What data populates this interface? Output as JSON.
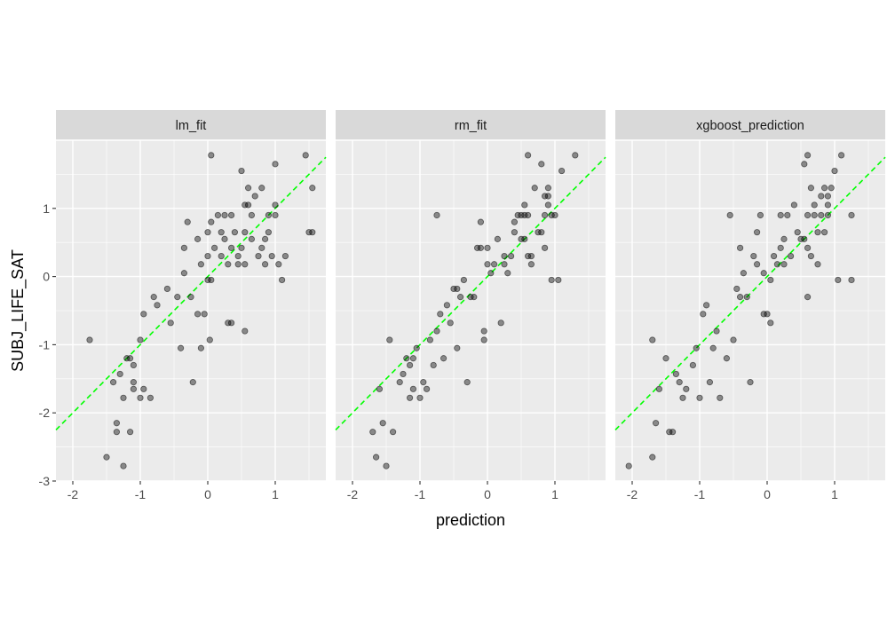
{
  "chart_data": {
    "type": "scatter",
    "facet_variable": "model",
    "xlabel": "prediction",
    "ylabel": "SUBJ_LIFE_SAT",
    "xlim": [
      -2.25,
      1.75
    ],
    "ylim": [
      -3.0,
      2.0
    ],
    "x_ticks": [
      -2,
      -1,
      0,
      1
    ],
    "y_ticks": [
      -3,
      -2,
      -1,
      0,
      1
    ],
    "grid": true,
    "reference_line": {
      "slope": 1,
      "intercept": 0,
      "style": "dashed",
      "color": "#00ff00"
    },
    "point_color": "#000000",
    "point_alpha": 0.45,
    "panels": [
      {
        "name": "lm_fit",
        "points": [
          [
            -1.75,
            -0.93
          ],
          [
            -1.5,
            -2.65
          ],
          [
            -1.4,
            -1.55
          ],
          [
            -1.35,
            -2.15
          ],
          [
            -1.35,
            -2.28
          ],
          [
            -1.3,
            -1.43
          ],
          [
            -1.25,
            -1.78
          ],
          [
            -1.25,
            -2.78
          ],
          [
            -1.2,
            -1.2
          ],
          [
            -1.15,
            -1.2
          ],
          [
            -1.15,
            -2.28
          ],
          [
            -1.1,
            -1.3
          ],
          [
            -1.1,
            -1.55
          ],
          [
            -1.1,
            -1.65
          ],
          [
            -1.0,
            -0.93
          ],
          [
            -1.0,
            -1.78
          ],
          [
            -0.95,
            -1.65
          ],
          [
            -0.95,
            -0.55
          ],
          [
            -0.85,
            -1.78
          ],
          [
            -0.8,
            -0.3
          ],
          [
            -0.75,
            -0.42
          ],
          [
            -0.6,
            -0.18
          ],
          [
            -0.55,
            -0.68
          ],
          [
            -0.45,
            -0.3
          ],
          [
            -0.4,
            -1.05
          ],
          [
            -0.35,
            0.05
          ],
          [
            -0.35,
            0.42
          ],
          [
            -0.3,
            0.8
          ],
          [
            -0.25,
            -0.3
          ],
          [
            -0.22,
            -1.55
          ],
          [
            -0.15,
            -0.55
          ],
          [
            -0.15,
            0.55
          ],
          [
            -0.1,
            0.18
          ],
          [
            -0.1,
            -1.05
          ],
          [
            -0.05,
            -0.55
          ],
          [
            0.0,
            -0.05
          ],
          [
            0.0,
            0.3
          ],
          [
            0.0,
            0.65
          ],
          [
            0.03,
            -0.93
          ],
          [
            0.05,
            0.8
          ],
          [
            0.05,
            -0.05
          ],
          [
            0.05,
            1.78
          ],
          [
            0.1,
            0.42
          ],
          [
            0.15,
            0.9
          ],
          [
            0.2,
            0.65
          ],
          [
            0.2,
            0.3
          ],
          [
            0.25,
            0.9
          ],
          [
            0.25,
            0.55
          ],
          [
            0.3,
            0.18
          ],
          [
            0.3,
            -0.68
          ],
          [
            0.35,
            0.42
          ],
          [
            0.35,
            -0.68
          ],
          [
            0.35,
            0.9
          ],
          [
            0.4,
            0.65
          ],
          [
            0.45,
            0.3
          ],
          [
            0.45,
            0.18
          ],
          [
            0.5,
            1.55
          ],
          [
            0.5,
            0.42
          ],
          [
            0.55,
            1.05
          ],
          [
            0.55,
            0.18
          ],
          [
            0.55,
            0.65
          ],
          [
            0.55,
            -0.8
          ],
          [
            0.6,
            1.3
          ],
          [
            0.6,
            1.05
          ],
          [
            0.65,
            0.55
          ],
          [
            0.65,
            0.9
          ],
          [
            0.7,
            1.18
          ],
          [
            0.75,
            0.3
          ],
          [
            0.8,
            1.3
          ],
          [
            0.8,
            0.42
          ],
          [
            0.85,
            0.55
          ],
          [
            0.85,
            0.18
          ],
          [
            0.9,
            0.9
          ],
          [
            0.9,
            0.65
          ],
          [
            0.95,
            0.3
          ],
          [
            1.0,
            1.65
          ],
          [
            1.0,
            1.05
          ],
          [
            1.0,
            0.9
          ],
          [
            1.05,
            0.18
          ],
          [
            1.1,
            -0.05
          ],
          [
            1.15,
            0.3
          ],
          [
            1.45,
            1.78
          ],
          [
            1.5,
            0.65
          ],
          [
            1.55,
            1.3
          ],
          [
            1.55,
            0.65
          ]
        ]
      },
      {
        "name": "rm_fit",
        "points": [
          [
            -1.7,
            -2.28
          ],
          [
            -1.65,
            -2.65
          ],
          [
            -1.6,
            -1.65
          ],
          [
            -1.55,
            -2.15
          ],
          [
            -1.5,
            -2.78
          ],
          [
            -1.45,
            -0.93
          ],
          [
            -1.4,
            -2.28
          ],
          [
            -1.3,
            -1.55
          ],
          [
            -1.25,
            -1.43
          ],
          [
            -1.2,
            -1.2
          ],
          [
            -1.15,
            -1.3
          ],
          [
            -1.15,
            -1.78
          ],
          [
            -1.1,
            -1.2
          ],
          [
            -1.1,
            -1.65
          ],
          [
            -1.05,
            -1.05
          ],
          [
            -1.0,
            -1.78
          ],
          [
            -0.95,
            -1.55
          ],
          [
            -0.9,
            -1.65
          ],
          [
            -0.85,
            -0.93
          ],
          [
            -0.8,
            -1.3
          ],
          [
            -0.75,
            -0.8
          ],
          [
            -0.75,
            0.9
          ],
          [
            -0.7,
            -0.55
          ],
          [
            -0.65,
            -1.2
          ],
          [
            -0.6,
            -0.42
          ],
          [
            -0.55,
            -0.68
          ],
          [
            -0.5,
            -0.18
          ],
          [
            -0.45,
            -1.05
          ],
          [
            -0.45,
            -0.18
          ],
          [
            -0.4,
            -0.3
          ],
          [
            -0.35,
            -0.05
          ],
          [
            -0.3,
            -1.55
          ],
          [
            -0.25,
            -0.3
          ],
          [
            -0.2,
            -0.3
          ],
          [
            -0.15,
            0.42
          ],
          [
            -0.1,
            0.8
          ],
          [
            -0.1,
            0.42
          ],
          [
            -0.05,
            -0.8
          ],
          [
            -0.05,
            -0.93
          ],
          [
            0.0,
            0.18
          ],
          [
            0.0,
            0.42
          ],
          [
            0.05,
            0.05
          ],
          [
            0.1,
            0.18
          ],
          [
            0.15,
            0.55
          ],
          [
            0.2,
            -0.68
          ],
          [
            0.25,
            0.3
          ],
          [
            0.25,
            0.18
          ],
          [
            0.3,
            0.05
          ],
          [
            0.35,
            0.3
          ],
          [
            0.4,
            0.8
          ],
          [
            0.4,
            0.65
          ],
          [
            0.45,
            0.9
          ],
          [
            0.5,
            0.55
          ],
          [
            0.5,
            0.9
          ],
          [
            0.55,
            0.9
          ],
          [
            0.55,
            0.55
          ],
          [
            0.55,
            1.05
          ],
          [
            0.6,
            1.78
          ],
          [
            0.6,
            0.9
          ],
          [
            0.6,
            0.3
          ],
          [
            0.65,
            0.18
          ],
          [
            0.65,
            0.3
          ],
          [
            0.7,
            1.3
          ],
          [
            0.75,
            0.65
          ],
          [
            0.8,
            0.65
          ],
          [
            0.8,
            1.65
          ],
          [
            0.85,
            1.18
          ],
          [
            0.85,
            0.9
          ],
          [
            0.85,
            0.42
          ],
          [
            0.9,
            1.3
          ],
          [
            0.9,
            1.18
          ],
          [
            0.9,
            1.05
          ],
          [
            0.95,
            0.9
          ],
          [
            0.95,
            -0.05
          ],
          [
            1.0,
            0.9
          ],
          [
            1.05,
            -0.05
          ],
          [
            1.1,
            1.55
          ],
          [
            1.3,
            1.78
          ]
        ]
      },
      {
        "name": "xgboost_prediction",
        "points": [
          [
            -2.05,
            -2.78
          ],
          [
            -1.7,
            -2.65
          ],
          [
            -1.7,
            -0.93
          ],
          [
            -1.65,
            -2.15
          ],
          [
            -1.6,
            -1.65
          ],
          [
            -1.5,
            -1.2
          ],
          [
            -1.45,
            -2.28
          ],
          [
            -1.4,
            -2.28
          ],
          [
            -1.35,
            -1.43
          ],
          [
            -1.3,
            -1.55
          ],
          [
            -1.25,
            -1.78
          ],
          [
            -1.2,
            -1.65
          ],
          [
            -1.1,
            -1.3
          ],
          [
            -1.05,
            -1.05
          ],
          [
            -1.0,
            -1.78
          ],
          [
            -0.95,
            -0.55
          ],
          [
            -0.9,
            -0.42
          ],
          [
            -0.85,
            -1.55
          ],
          [
            -0.8,
            -1.05
          ],
          [
            -0.75,
            -0.8
          ],
          [
            -0.7,
            -1.78
          ],
          [
            -0.6,
            -1.2
          ],
          [
            -0.55,
            0.9
          ],
          [
            -0.5,
            -0.93
          ],
          [
            -0.45,
            -0.18
          ],
          [
            -0.4,
            -0.3
          ],
          [
            -0.4,
            0.42
          ],
          [
            -0.35,
            0.05
          ],
          [
            -0.3,
            -0.3
          ],
          [
            -0.25,
            -1.55
          ],
          [
            -0.2,
            0.3
          ],
          [
            -0.15,
            0.18
          ],
          [
            -0.15,
            0.65
          ],
          [
            -0.1,
            0.9
          ],
          [
            -0.05,
            -0.55
          ],
          [
            -0.05,
            0.05
          ],
          [
            0.0,
            -0.55
          ],
          [
            0.05,
            -0.68
          ],
          [
            0.05,
            -0.05
          ],
          [
            0.1,
            0.3
          ],
          [
            0.15,
            0.18
          ],
          [
            0.2,
            0.42
          ],
          [
            0.2,
            0.9
          ],
          [
            0.25,
            0.55
          ],
          [
            0.25,
            0.18
          ],
          [
            0.3,
            0.9
          ],
          [
            0.35,
            0.3
          ],
          [
            0.4,
            1.05
          ],
          [
            0.45,
            0.65
          ],
          [
            0.5,
            0.55
          ],
          [
            0.55,
            1.65
          ],
          [
            0.55,
            0.55
          ],
          [
            0.6,
            1.78
          ],
          [
            0.6,
            0.42
          ],
          [
            0.6,
            0.9
          ],
          [
            0.6,
            -0.3
          ],
          [
            0.65,
            0.3
          ],
          [
            0.65,
            1.3
          ],
          [
            0.7,
            1.05
          ],
          [
            0.7,
            0.9
          ],
          [
            0.75,
            0.65
          ],
          [
            0.75,
            0.18
          ],
          [
            0.8,
            1.18
          ],
          [
            0.8,
            0.9
          ],
          [
            0.85,
            1.3
          ],
          [
            0.85,
            0.65
          ],
          [
            0.9,
            1.18
          ],
          [
            0.9,
            1.05
          ],
          [
            0.9,
            0.9
          ],
          [
            0.95,
            1.3
          ],
          [
            1.0,
            1.55
          ],
          [
            1.05,
            -0.05
          ],
          [
            1.1,
            1.78
          ],
          [
            1.25,
            0.9
          ],
          [
            1.25,
            -0.05
          ]
        ]
      }
    ]
  }
}
